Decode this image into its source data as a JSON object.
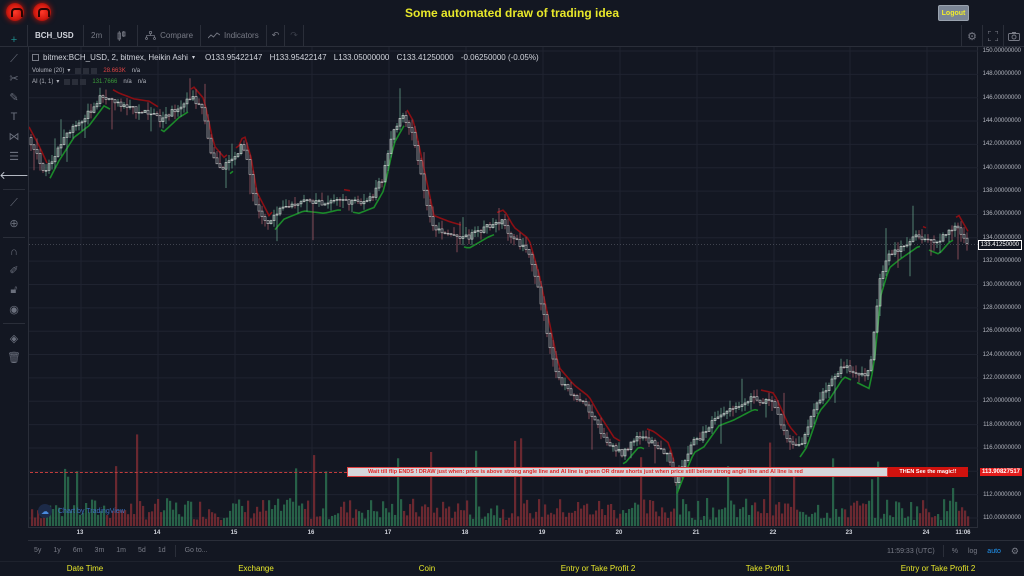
{
  "header": {
    "title": "Some automated draw of trading idea",
    "logout_label": "Logout",
    "logos": [
      "logo-icon",
      "logo-icon"
    ]
  },
  "toolbar": {
    "symbol": "BCH_USD",
    "interval": "2m",
    "chart_type_icon": "candles-icon",
    "compare_label": "Compare",
    "indicators_label": "Indicators",
    "undo_icon": "undo-icon",
    "redo_icon": "redo-icon",
    "right_icons": [
      "settings-icon",
      "fullscreen-icon",
      "camera-icon"
    ]
  },
  "left_tools": [
    "crosshair-icon",
    "trend-line-icon",
    "pitchfork-icon",
    "brush-icon",
    "text-icon",
    "pattern-icon",
    "prediction-icon",
    "back-arrow-icon",
    "ruler-icon",
    "zoom-in-icon",
    "magnet-icon",
    "lock-drawing-icon",
    "lock-icon",
    "eye-icon",
    "layers-icon",
    "trash-icon"
  ],
  "legend": {
    "title": "bitmex:BCH_USD, 2, bitmex, Heikin Ashi",
    "open": "O133.95422147",
    "high": "H133.95422147",
    "low": "L133.05000000",
    "close": "C133.41250000",
    "change": "-0.06250000 (-0.05%)",
    "volume_label": "Volume (20)",
    "volume_value": "28.663K",
    "volume_na": "n/a",
    "ai_label": "AI (1, 1)",
    "ai_value": "131.7666",
    "ai_na1": "n/a",
    "ai_na2": "n/a"
  },
  "price_axis": {
    "labels": [
      "150.00000000",
      "148.00000000",
      "146.00000000",
      "144.00000000",
      "142.00000000",
      "140.00000000",
      "138.00000000",
      "136.00000000",
      "134.00000000",
      "132.00000000",
      "130.00000000",
      "128.00000000",
      "126.00000000",
      "124.00000000",
      "122.00000000",
      "120.00000000",
      "118.00000000",
      "116.00000000",
      "112.00000000",
      "110.00000000"
    ],
    "current_price": "133.41250000",
    "line_price": "113.90827517"
  },
  "time_axis": {
    "labels": [
      "13",
      "14",
      "15",
      "16",
      "17",
      "18",
      "19",
      "20",
      "21",
      "22",
      "23",
      "24"
    ],
    "end_label": "11:06"
  },
  "banner": {
    "text": "Wait till flip ENDS  !   DRAW just when:  price is above strong angle line and AI line is green          OR          draw shorts just when price still below strong angle line and AI line is red",
    "action": "THEN See the magic!!"
  },
  "watermark": "Chart by TradingView",
  "bottombar": {
    "ranges": [
      "5y",
      "1y",
      "6m",
      "3m",
      "1m",
      "5d",
      "1d"
    ],
    "goto_label": "Go to...",
    "time": "11:59:33 (UTC)",
    "percent_label": "%",
    "log_label": "log",
    "auto_label": "auto"
  },
  "footer": {
    "columns": [
      "Date Time",
      "Exchange",
      "Coin",
      "Entry or Take Profit 2",
      "Take Profit 1",
      "Entry or Take Profit 2"
    ]
  },
  "colors": {
    "background": "#131722",
    "accent_yellow": "#e8e82a",
    "up": "#26a69a",
    "down": "#ef5350",
    "ai_green": "#1b8a2a",
    "ai_red": "#8b0f14",
    "banner_red": "#d0120e"
  },
  "chart_path": [
    [
      0,
      142.6
    ],
    [
      10,
      141
    ],
    [
      18,
      139.5
    ],
    [
      30,
      141.5
    ],
    [
      45,
      143.5
    ],
    [
      60,
      144.5
    ],
    [
      75,
      146.2
    ],
    [
      90,
      145.5
    ],
    [
      105,
      145
    ],
    [
      120,
      144.8
    ],
    [
      135,
      144
    ],
    [
      150,
      145.2
    ],
    [
      165,
      146
    ],
    [
      175,
      145
    ],
    [
      180,
      143
    ],
    [
      185,
      141
    ],
    [
      195,
      140
    ],
    [
      210,
      141
    ],
    [
      215,
      142
    ],
    [
      222,
      140
    ],
    [
      228,
      137
    ],
    [
      240,
      135
    ],
    [
      255,
      136.5
    ],
    [
      275,
      137.2
    ],
    [
      295,
      137
    ],
    [
      310,
      137.3
    ],
    [
      330,
      137
    ],
    [
      345,
      137.5
    ],
    [
      355,
      139
    ],
    [
      365,
      143
    ],
    [
      375,
      144.5
    ],
    [
      385,
      143
    ],
    [
      395,
      139
    ],
    [
      405,
      135
    ],
    [
      420,
      134.5
    ],
    [
      440,
      134
    ],
    [
      460,
      135
    ],
    [
      475,
      135.5
    ],
    [
      485,
      134
    ],
    [
      500,
      133
    ],
    [
      510,
      130
    ],
    [
      520,
      126
    ],
    [
      530,
      122
    ],
    [
      545,
      120.5
    ],
    [
      560,
      119.5
    ],
    [
      570,
      118
    ],
    [
      585,
      116
    ],
    [
      595,
      115.5
    ],
    [
      610,
      117
    ],
    [
      625,
      116.5
    ],
    [
      640,
      115.5
    ],
    [
      648,
      113
    ],
    [
      655,
      114.5
    ],
    [
      665,
      116.5
    ],
    [
      675,
      117
    ],
    [
      690,
      118.8
    ],
    [
      705,
      119.3
    ],
    [
      725,
      120.2
    ],
    [
      745,
      119.8
    ],
    [
      760,
      117
    ],
    [
      770,
      116
    ],
    [
      778,
      117
    ],
    [
      790,
      120
    ],
    [
      800,
      121
    ],
    [
      815,
      123
    ],
    [
      828,
      122.5
    ],
    [
      840,
      122
    ],
    [
      845,
      124
    ],
    [
      852,
      130
    ],
    [
      860,
      132.3
    ],
    [
      870,
      133
    ],
    [
      890,
      134.2
    ],
    [
      910,
      133.5
    ],
    [
      920,
      134.5
    ],
    [
      930,
      135
    ],
    [
      940,
      133.5
    ]
  ]
}
